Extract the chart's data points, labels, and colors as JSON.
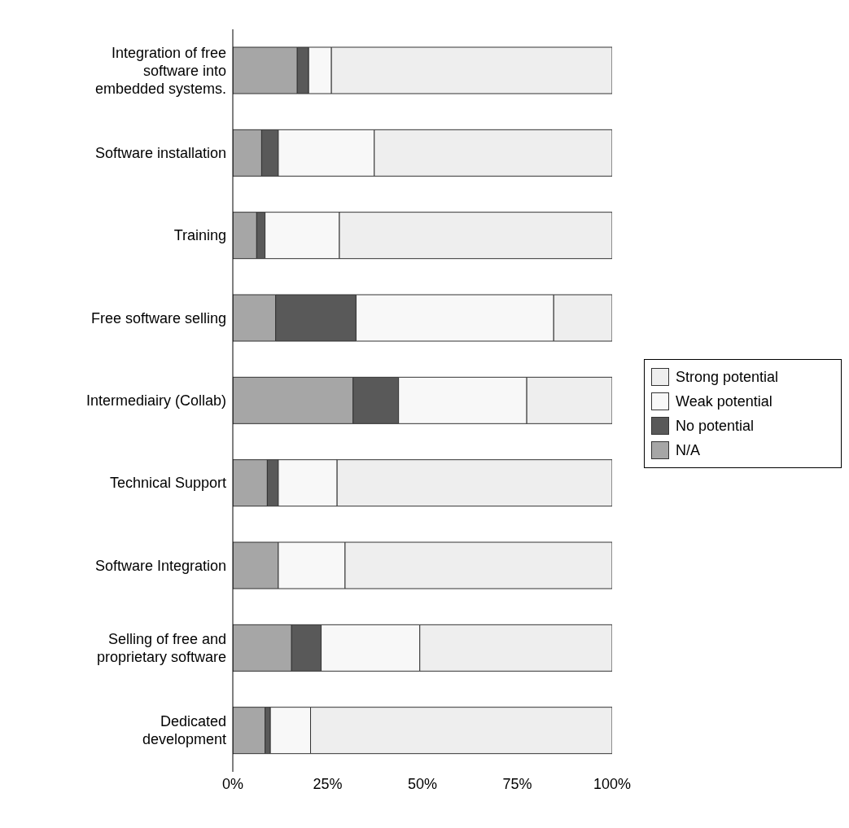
{
  "chart_data": {
    "type": "bar",
    "orientation": "horizontal",
    "stacked": true,
    "categories": [
      "Integration of free\nsoftware into\nembedded systems.",
      "Software installation",
      "Training",
      "Free software selling",
      "Intermediairy (Collab)",
      "Technical Support",
      "Software Integration",
      "Selling of free and\nproprietary software",
      "Dedicated\ndevelopment"
    ],
    "series": [
      {
        "name": "N/A",
        "color": "#a6a6a6",
        "values": [
          17,
          7.6,
          6.3,
          11.3,
          31.7,
          9.1,
          12,
          15.5,
          8.5
        ]
      },
      {
        "name": "No potential",
        "color": "#595959",
        "values": [
          3,
          4.4,
          2.2,
          21.2,
          12,
          2.9,
          0,
          7.8,
          1.4
        ]
      },
      {
        "name": "Weak potential",
        "color": "#f8f8f8",
        "values": [
          6,
          25.3,
          19.6,
          52.1,
          33.8,
          15.5,
          17.6,
          26,
          10.6
        ]
      },
      {
        "name": "Strong potential",
        "color": "#eeeeee",
        "values": [
          74,
          62.7,
          71.9,
          15.4,
          22.5,
          72.5,
          70.4,
          50.7,
          79.5
        ]
      }
    ],
    "xlim": [
      0,
      100
    ],
    "xticks": [
      {
        "value": 0,
        "label": "0%"
      },
      {
        "value": 25,
        "label": "25%"
      },
      {
        "value": 50,
        "label": "50%"
      },
      {
        "value": 75,
        "label": "75%"
      },
      {
        "value": 100,
        "label": "100%"
      }
    ],
    "grid": false,
    "legend": "right"
  }
}
